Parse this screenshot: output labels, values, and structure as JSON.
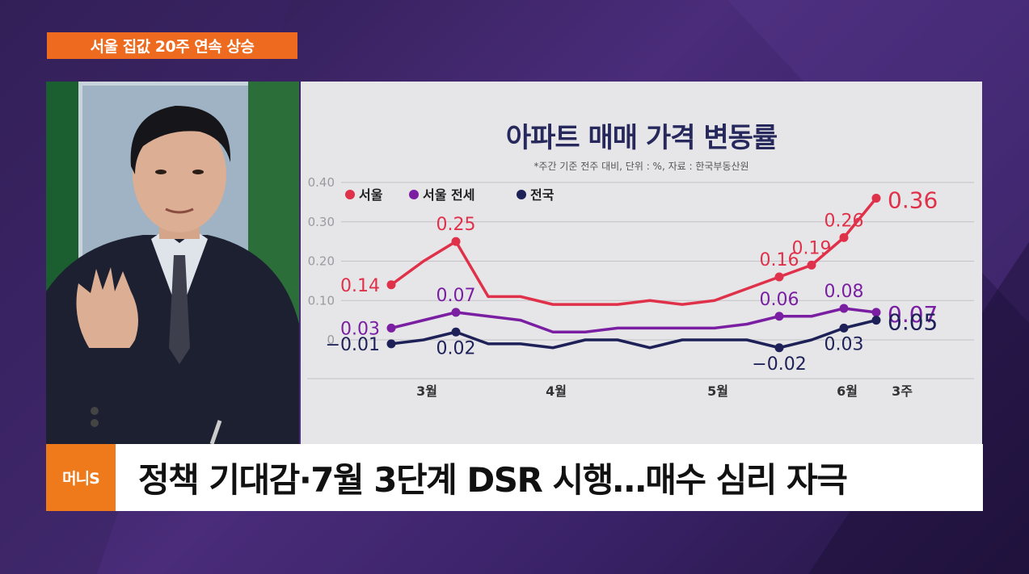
{
  "topic_tag": "서울 집값 20주 연속 상승",
  "logo": "머니S",
  "headline": "정책 기대감·7월 3단계 DSR 시행…매수 심리 자극",
  "colors": {
    "seoul": "#e0314a",
    "seoul_jeonse": "#7a1fa2",
    "national": "#1e2157",
    "accent": "#ee6a1e"
  },
  "chart_data": {
    "type": "line",
    "title": "아파트 매매 가격 변동률",
    "note": "*주간 기준 전주 대비, 단위 : %, 자료 : 한국부동산원",
    "ylim": [
      -0.04,
      0.4
    ],
    "y_ticks": [
      "0.40",
      "0.30",
      "0.20",
      "0.10",
      "0"
    ],
    "y_tick_values": [
      0.4,
      0.3,
      0.2,
      0.1,
      0
    ],
    "x_tick_labels": [
      {
        "label": "3월",
        "i": 1.3
      },
      {
        "label": "4월",
        "i": 5.3
      },
      {
        "label": "5월",
        "i": 10.3
      },
      {
        "label": "6월",
        "i": 14.3
      },
      {
        "label": "3주",
        "i": 16
      }
    ],
    "num_points": 17,
    "grid": true,
    "legend_position": "top-left",
    "series": [
      {
        "name": "서울",
        "color_key": "seoul",
        "values": [
          0.14,
          0.2,
          0.25,
          0.11,
          0.11,
          0.09,
          0.09,
          0.09,
          0.1,
          0.09,
          0.1,
          0.13,
          0.16,
          0.19,
          0.26,
          0.36,
          null
        ],
        "labels": [
          {
            "i": 0,
            "text": "0.14",
            "pos": "left"
          },
          {
            "i": 2,
            "text": "0.25",
            "pos": "above"
          },
          {
            "i": 12,
            "text": "0.16",
            "pos": "above"
          },
          {
            "i": 13,
            "text": "0.19",
            "pos": "above"
          },
          {
            "i": 14,
            "text": "0.26",
            "pos": "above"
          },
          {
            "i": 15,
            "text": "0.36",
            "pos": "right-big"
          }
        ]
      },
      {
        "name": "서울 전세",
        "color_key": "seoul_jeonse",
        "values": [
          0.03,
          0.05,
          0.07,
          0.06,
          0.05,
          0.02,
          0.02,
          0.03,
          0.03,
          0.03,
          0.03,
          0.04,
          0.06,
          0.06,
          0.08,
          0.07,
          null
        ],
        "labels": [
          {
            "i": 0,
            "text": "0.03",
            "pos": "left"
          },
          {
            "i": 2,
            "text": "0.07",
            "pos": "above"
          },
          {
            "i": 12,
            "text": "0.06",
            "pos": "above"
          },
          {
            "i": 14,
            "text": "0.08",
            "pos": "above"
          },
          {
            "i": 15,
            "text": "0.07",
            "pos": "right-big"
          }
        ]
      },
      {
        "name": "전국",
        "color_key": "national",
        "values": [
          -0.01,
          0.0,
          0.02,
          -0.01,
          -0.01,
          -0.02,
          0.0,
          0.0,
          -0.02,
          0.0,
          0.0,
          0.0,
          -0.02,
          0.0,
          0.03,
          0.05,
          null
        ],
        "labels": [
          {
            "i": 0,
            "text": "−0.01",
            "pos": "left"
          },
          {
            "i": 2,
            "text": "0.02",
            "pos": "below"
          },
          {
            "i": 12,
            "text": "−0.02",
            "pos": "below"
          },
          {
            "i": 14,
            "text": "0.03",
            "pos": "below"
          },
          {
            "i": 15,
            "text": "0.05",
            "pos": "right-big"
          }
        ]
      }
    ],
    "markers": [
      {
        "series": 0,
        "i": [
          0,
          2,
          12,
          13,
          14,
          15
        ]
      },
      {
        "series": 1,
        "i": [
          0,
          2,
          12,
          14,
          15
        ]
      },
      {
        "series": 2,
        "i": [
          0,
          2,
          12,
          14,
          15
        ]
      }
    ]
  }
}
